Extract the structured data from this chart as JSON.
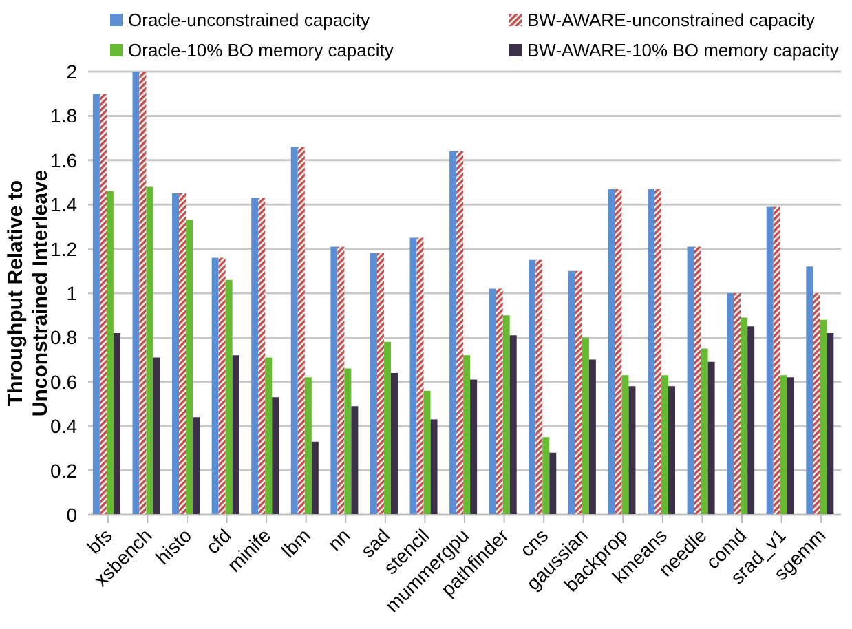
{
  "chart_data": {
    "type": "bar",
    "ylabel": "Throughput Relative to Unconstrained Interleave",
    "categories": [
      "bfs",
      "xsbench",
      "histo",
      "cfd",
      "minife",
      "lbm",
      "nn",
      "sad",
      "stencil",
      "mummergpu",
      "pathfinder",
      "cns",
      "gaussian",
      "backprop",
      "kmeans",
      "needle",
      "comd",
      "srad_v1",
      "sgemm"
    ],
    "series": [
      {
        "name": "Oracle-unconstrained capacity",
        "color": "#5a8fd6",
        "values": [
          1.9,
          2.0,
          1.45,
          1.16,
          1.43,
          1.66,
          1.21,
          1.18,
          1.25,
          1.64,
          1.02,
          1.15,
          1.1,
          1.47,
          1.47,
          1.21,
          1.0,
          1.39,
          1.12
        ]
      },
      {
        "name": "BW-AWARE-unconstrained capacity",
        "color": "#c0504d",
        "values": [
          1.9,
          2.0,
          1.45,
          1.16,
          1.43,
          1.66,
          1.21,
          1.18,
          1.25,
          1.64,
          1.02,
          1.15,
          1.1,
          1.47,
          1.47,
          1.21,
          1.0,
          1.39,
          1.0
        ]
      },
      {
        "name": "Oracle-10% BO memory capacity",
        "color": "#66bb33",
        "values": [
          1.46,
          1.48,
          1.33,
          1.06,
          0.71,
          0.62,
          0.66,
          0.78,
          0.56,
          0.72,
          0.9,
          0.35,
          0.8,
          0.63,
          0.63,
          0.75,
          0.89,
          0.63,
          0.88
        ]
      },
      {
        "name": "BW-AWARE-10% BO memory capacity",
        "color": "#3b3048",
        "values": [
          0.82,
          0.71,
          0.44,
          0.72,
          0.53,
          0.33,
          0.49,
          0.64,
          0.43,
          0.61,
          0.81,
          0.28,
          0.7,
          0.58,
          0.58,
          0.69,
          0.85,
          0.62,
          0.82
        ]
      }
    ],
    "ylim": [
      0,
      2
    ],
    "yticks": [
      0,
      0.2,
      0.4,
      0.6,
      0.8,
      1,
      1.2,
      1.4,
      1.6,
      1.8,
      2
    ],
    "grid": "y",
    "legend": "top"
  }
}
